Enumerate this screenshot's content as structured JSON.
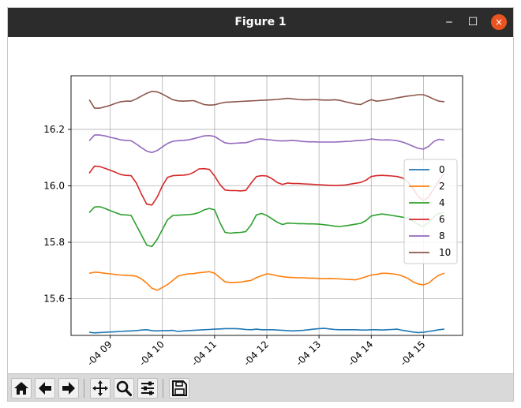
{
  "window": {
    "title": "Figure 1",
    "close_glyph": "×",
    "minimize_glyph": "‒",
    "maximize_glyph": "☐"
  },
  "toolbar": {
    "buttons": [
      "home-icon",
      "back-arrow-icon",
      "forward-arrow-icon",
      "pan-move-icon",
      "zoom-magnifier-icon",
      "subplots-config-icon",
      "save-floppy-icon"
    ]
  },
  "colors": {
    "titlebar": "#2c2c2c",
    "close_button": "#e95420",
    "toolbar": "#d9d9d9"
  },
  "chart_data": {
    "type": "line",
    "title": "",
    "xlabel": "",
    "ylabel": "",
    "x_tick_labels": [
      "-04 09",
      "-04 10",
      "-04 11",
      "-04 12",
      "-04 13",
      "-04 14",
      "-04 15"
    ],
    "x_ticks": [
      9,
      10,
      11,
      12,
      13,
      14,
      15
    ],
    "x_range": [
      8.25,
      15.75
    ],
    "y_ticks": [
      15.6,
      15.8,
      16.0,
      16.2
    ],
    "y_tick_labels": [
      "15.6",
      "15.8",
      "16.0",
      "16.2"
    ],
    "ylim": [
      15.47,
      16.39
    ],
    "grid": true,
    "legend_position": "right",
    "x": [
      8.6,
      8.7,
      8.8,
      8.9,
      9.0,
      9.1,
      9.2,
      9.3,
      9.4,
      9.5,
      9.6,
      9.7,
      9.8,
      9.9,
      10.0,
      10.1,
      10.2,
      10.3,
      10.4,
      10.5,
      10.6,
      10.7,
      10.8,
      10.9,
      11.0,
      11.1,
      11.2,
      11.3,
      11.4,
      11.5,
      11.6,
      11.7,
      11.8,
      11.9,
      12.0,
      12.1,
      12.2,
      12.3,
      12.4,
      12.5,
      12.6,
      12.7,
      12.8,
      12.9,
      13.0,
      13.1,
      13.2,
      13.3,
      13.4,
      13.5,
      13.6,
      13.7,
      13.8,
      13.9,
      14.0,
      14.1,
      14.2,
      14.3,
      14.4,
      14.5,
      14.6,
      14.7,
      14.8,
      14.9,
      15.0,
      15.1,
      15.2,
      15.3,
      15.4
    ],
    "series": [
      {
        "name": "0",
        "color": "#1f77b4",
        "values": [
          15.481,
          15.479,
          15.48,
          15.481,
          15.482,
          15.483,
          15.484,
          15.485,
          15.486,
          15.487,
          15.489,
          15.49,
          15.487,
          15.486,
          15.487,
          15.487,
          15.488,
          15.484,
          15.486,
          15.487,
          15.488,
          15.489,
          15.49,
          15.491,
          15.492,
          15.493,
          15.494,
          15.494,
          15.494,
          15.493,
          15.491,
          15.49,
          15.492,
          15.49,
          15.49,
          15.49,
          15.489,
          15.488,
          15.487,
          15.486,
          15.487,
          15.488,
          15.49,
          15.492,
          15.494,
          15.495,
          15.493,
          15.491,
          15.49,
          15.49,
          15.49,
          15.49,
          15.489,
          15.489,
          15.49,
          15.49,
          15.489,
          15.49,
          15.491,
          15.492,
          15.488,
          15.485,
          15.482,
          15.48,
          15.481,
          15.484,
          15.487,
          15.49,
          15.492
        ]
      },
      {
        "name": "2",
        "color": "#ff7f0e",
        "values": [
          15.69,
          15.694,
          15.693,
          15.69,
          15.688,
          15.686,
          15.684,
          15.683,
          15.682,
          15.68,
          15.67,
          15.655,
          15.637,
          15.63,
          15.64,
          15.65,
          15.665,
          15.68,
          15.685,
          15.688,
          15.689,
          15.692,
          15.694,
          15.696,
          15.69,
          15.675,
          15.66,
          15.657,
          15.658,
          15.659,
          15.662,
          15.665,
          15.675,
          15.682,
          15.688,
          15.686,
          15.681,
          15.678,
          15.676,
          15.675,
          15.674,
          15.674,
          15.673,
          15.673,
          15.672,
          15.671,
          15.672,
          15.671,
          15.67,
          15.669,
          15.668,
          15.667,
          15.672,
          15.678,
          15.684,
          15.686,
          15.69,
          15.69,
          15.688,
          15.686,
          15.68,
          15.672,
          15.66,
          15.652,
          15.649,
          15.655,
          15.671,
          15.684,
          15.69
        ]
      },
      {
        "name": "4",
        "color": "#2ca02c",
        "values": [
          15.905,
          15.925,
          15.926,
          15.92,
          15.912,
          15.905,
          15.898,
          15.897,
          15.895,
          15.86,
          15.825,
          15.79,
          15.785,
          15.81,
          15.845,
          15.88,
          15.895,
          15.896,
          15.897,
          15.898,
          15.9,
          15.905,
          15.915,
          15.92,
          15.915,
          15.87,
          15.835,
          15.832,
          15.834,
          15.835,
          15.838,
          15.862,
          15.897,
          15.902,
          15.895,
          15.883,
          15.871,
          15.863,
          15.868,
          15.867,
          15.866,
          15.866,
          15.865,
          15.865,
          15.864,
          15.862,
          15.86,
          15.857,
          15.856,
          15.858,
          15.861,
          15.864,
          15.867,
          15.877,
          15.893,
          15.897,
          15.9,
          15.898,
          15.895,
          15.892,
          15.889,
          15.885,
          15.875,
          15.863,
          15.856,
          15.87,
          15.89,
          15.903,
          15.905
        ]
      },
      {
        "name": "6",
        "color": "#d62728",
        "values": [
          16.045,
          16.07,
          16.068,
          16.062,
          16.055,
          16.048,
          16.04,
          16.037,
          16.036,
          16.01,
          15.97,
          15.935,
          15.932,
          15.96,
          16.0,
          16.03,
          16.036,
          16.037,
          16.038,
          16.04,
          16.048,
          16.06,
          16.061,
          16.058,
          16.035,
          16.005,
          15.985,
          15.983,
          15.983,
          15.982,
          15.984,
          16.01,
          16.033,
          16.036,
          16.035,
          16.025,
          16.012,
          16.005,
          16.01,
          16.008,
          16.008,
          16.007,
          16.006,
          16.005,
          16.004,
          16.003,
          16.002,
          16.001,
          16.002,
          16.003,
          16.006,
          16.009,
          16.012,
          16.02,
          16.033,
          16.036,
          16.037,
          16.036,
          16.035,
          16.033,
          16.028,
          16.015,
          15.99,
          15.962,
          15.948,
          15.96,
          15.99,
          16.02,
          16.045
        ]
      },
      {
        "name": "8",
        "color": "#9467bd",
        "values": [
          16.16,
          16.18,
          16.18,
          16.177,
          16.172,
          16.168,
          16.163,
          16.161,
          16.16,
          16.148,
          16.135,
          16.123,
          16.118,
          16.125,
          16.138,
          16.15,
          16.158,
          16.16,
          16.161,
          16.163,
          16.167,
          16.172,
          16.177,
          16.178,
          16.175,
          16.163,
          16.152,
          16.15,
          16.151,
          16.152,
          16.153,
          16.158,
          16.165,
          16.166,
          16.164,
          16.162,
          16.16,
          16.159,
          16.16,
          16.161,
          16.159,
          16.157,
          16.156,
          16.156,
          16.155,
          16.155,
          16.155,
          16.155,
          16.156,
          16.157,
          16.158,
          16.16,
          16.161,
          16.162,
          16.166,
          16.164,
          16.162,
          16.163,
          16.162,
          16.16,
          16.155,
          16.148,
          16.14,
          16.133,
          16.13,
          16.14,
          16.157,
          16.165,
          16.162
        ]
      },
      {
        "name": "10",
        "color": "#8c564b",
        "values": [
          16.305,
          16.275,
          16.275,
          16.28,
          16.285,
          16.292,
          16.298,
          16.3,
          16.3,
          16.308,
          16.318,
          16.328,
          16.335,
          16.333,
          16.325,
          16.315,
          16.305,
          16.301,
          16.3,
          16.301,
          16.302,
          16.295,
          16.288,
          16.286,
          16.287,
          16.292,
          16.296,
          16.297,
          16.298,
          16.299,
          16.3,
          16.301,
          16.302,
          16.303,
          16.304,
          16.305,
          16.306,
          16.308,
          16.31,
          16.308,
          16.306,
          16.305,
          16.305,
          16.306,
          16.305,
          16.304,
          16.304,
          16.305,
          16.303,
          16.298,
          16.294,
          16.29,
          16.288,
          16.298,
          16.305,
          16.3,
          16.302,
          16.305,
          16.308,
          16.312,
          16.315,
          16.318,
          16.32,
          16.323,
          16.323,
          16.316,
          16.307,
          16.3,
          16.298
        ]
      }
    ]
  }
}
